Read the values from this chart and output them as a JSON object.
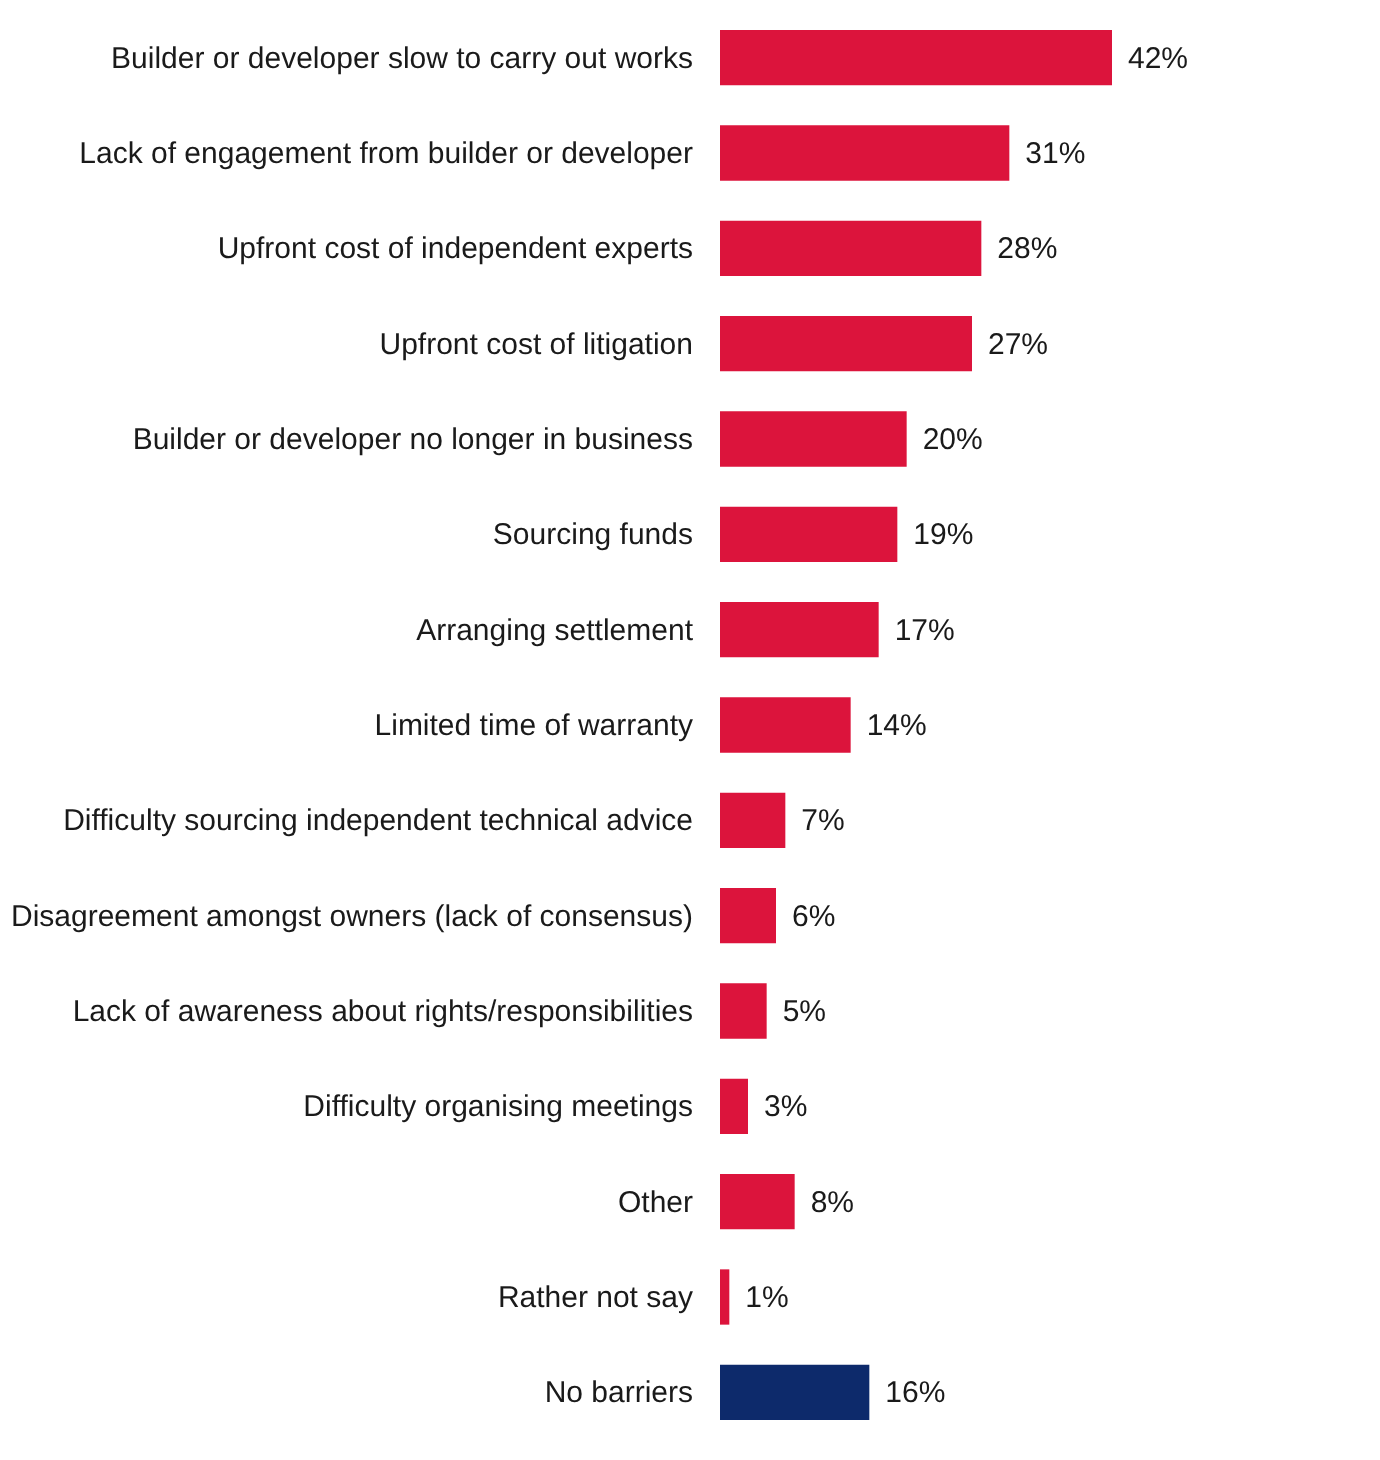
{
  "chart_data": {
    "type": "bar",
    "orientation": "horizontal",
    "data_labels": true,
    "categories": [
      "Builder or developer slow to carry out works",
      "Lack of engagement from builder or developer",
      "Upfront cost of independent experts",
      "Upfront cost of litigation",
      "Builder or developer no longer in business",
      "Sourcing funds",
      "Arranging settlement",
      "Limited time of warranty",
      "Difficulty sourcing independent technical advice",
      "Disagreement amongst owners (lack of consensus)",
      "Lack of awareness about rights/responsibilities",
      "Difficulty organising meetings",
      "Other",
      "Rather not say",
      "No barriers"
    ],
    "values": [
      42,
      31,
      28,
      27,
      20,
      19,
      17,
      14,
      7,
      6,
      5,
      3,
      8,
      1,
      16
    ],
    "value_labels": [
      "42%",
      "31%",
      "28%",
      "27%",
      "20%",
      "19%",
      "17%",
      "14%",
      "7%",
      "6%",
      "5%",
      "3%",
      "8%",
      "1%",
      "16%"
    ],
    "colors": [
      "#dc143c",
      "#dc143c",
      "#dc143c",
      "#dc143c",
      "#dc143c",
      "#dc143c",
      "#dc143c",
      "#dc143c",
      "#dc143c",
      "#dc143c",
      "#dc143c",
      "#dc143c",
      "#dc143c",
      "#dc143c",
      "#0d2a6b"
    ]
  }
}
